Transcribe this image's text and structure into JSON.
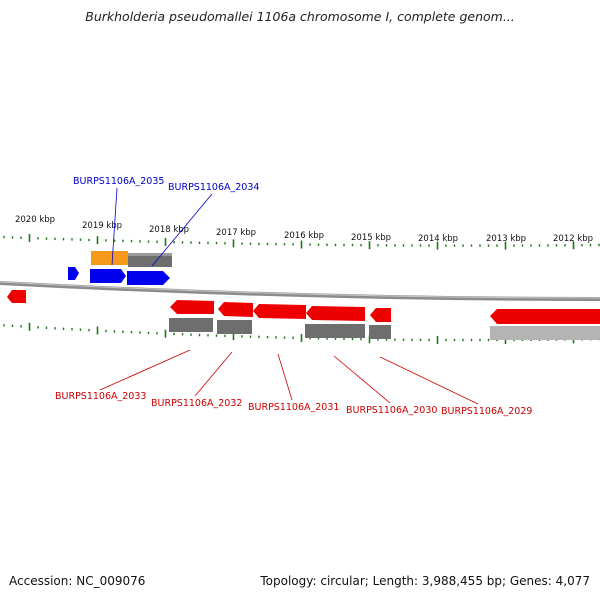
{
  "title": "Burkholderia pseudomallei 1106a chromosome I, complete genom...",
  "footer": {
    "accession": "Accession: NC_009076",
    "summary": "Topology: circular; Length: 3,988,455 bp; Genes: 4,077"
  },
  "colors": {
    "forward_gene": "#0000ee",
    "reverse_gene": "#ee0000",
    "highlight_gene": "#f59a1a",
    "cds_feature": "#6e6e6e",
    "tick": "#1a7a1a",
    "backbone": "#8c8c8c",
    "label_forward": "#0000cc",
    "label_reverse": "#cc0000"
  },
  "ticks": [
    {
      "label": "2020 kbp"
    },
    {
      "label": "2019 kbp"
    },
    {
      "label": "2018 kbp"
    },
    {
      "label": "2017 kbp"
    },
    {
      "label": "2016 kbp"
    },
    {
      "label": "2015 kbp"
    },
    {
      "label": "2014 kbp"
    },
    {
      "label": "2013 kbp"
    },
    {
      "label": "2012 kbp"
    }
  ],
  "gene_labels": [
    {
      "text": "BURPS1106A_2035",
      "strand": "forward"
    },
    {
      "text": "BURPS1106A_2034",
      "strand": "forward"
    },
    {
      "text": "BURPS1106A_2033",
      "strand": "reverse"
    },
    {
      "text": "BURPS1106A_2032",
      "strand": "reverse"
    },
    {
      "text": "BURPS1106A_2031",
      "strand": "reverse"
    },
    {
      "text": "BURPS1106A_2030",
      "strand": "reverse"
    },
    {
      "text": "BURPS1106A_2029",
      "strand": "reverse"
    }
  ]
}
